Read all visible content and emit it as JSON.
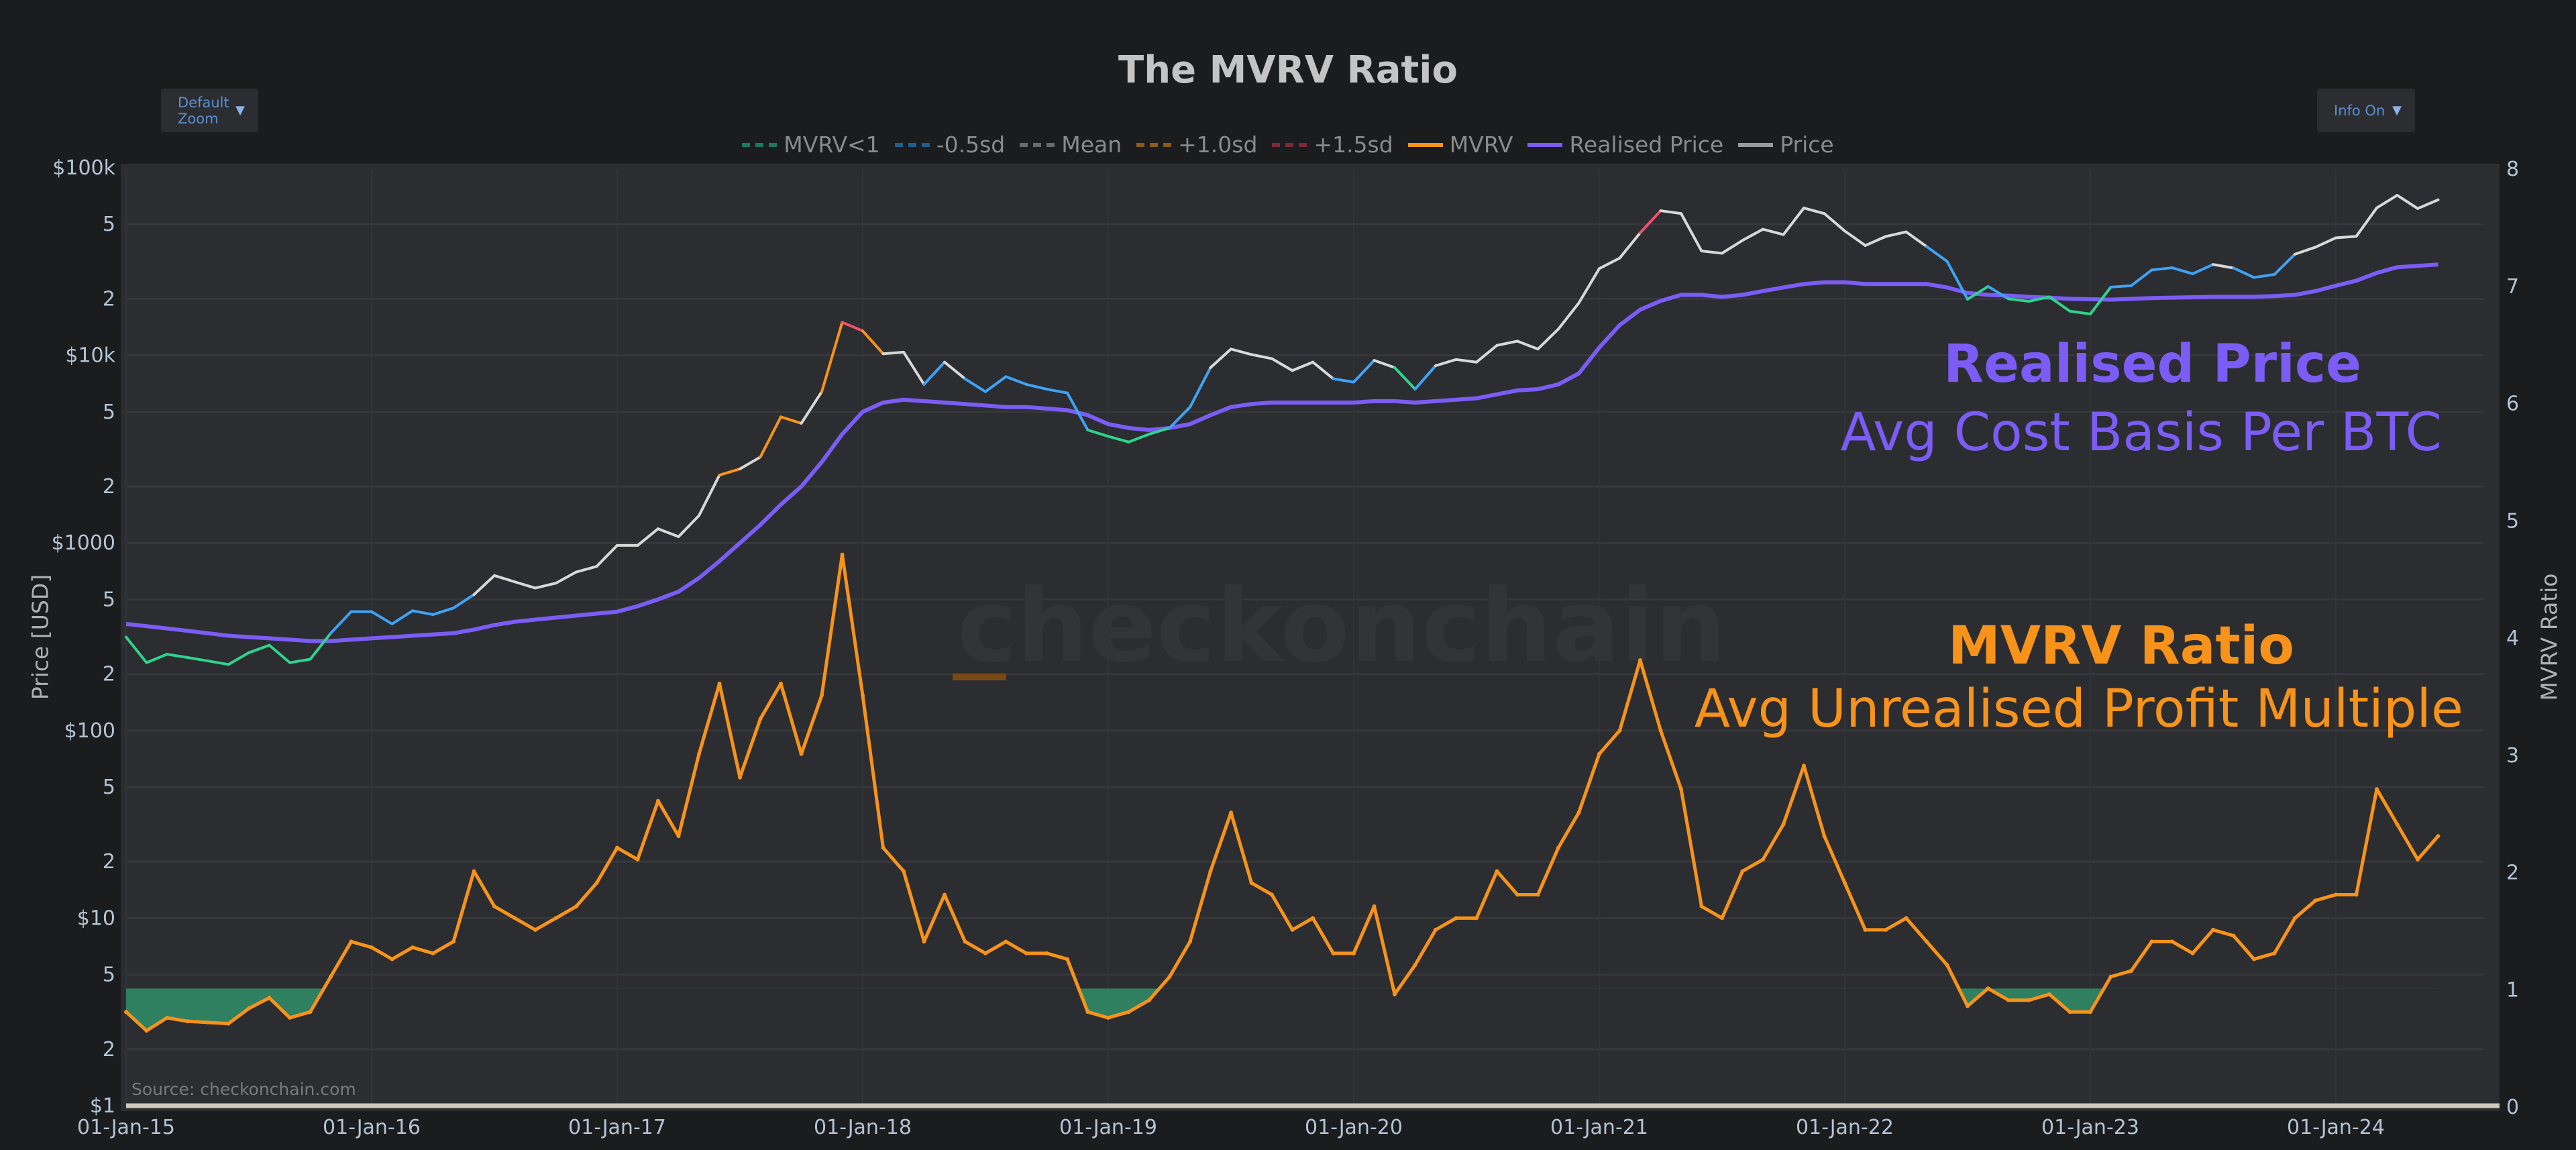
{
  "title": "The MVRV Ratio",
  "controls": {
    "zoom_label": "Default Zoom",
    "info_label": "Info On",
    "dropdown_arrow": "▼"
  },
  "legend": [
    {
      "label": "MVRV<1",
      "style": "dash",
      "color": "#1e7a5a"
    },
    {
      "label": "-0.5sd",
      "style": "dash",
      "color": "#1f5f8f"
    },
    {
      "label": "Mean",
      "style": "dash",
      "color": "#6a6a6a"
    },
    {
      "label": "+1.0sd",
      "style": "dash",
      "color": "#8a5a1e"
    },
    {
      "label": "+1.5sd",
      "style": "dash",
      "color": "#7a2a3a"
    },
    {
      "label": "MVRV",
      "style": "solid",
      "color": "#f7931a"
    },
    {
      "label": "Realised Price",
      "style": "solid",
      "color": "#7b5cf5"
    },
    {
      "label": "Price",
      "style": "solid",
      "color": "#9a9a9a"
    }
  ],
  "annotations": {
    "realised_title": "Realised Price",
    "realised_sub": "Avg Cost Basis Per BTC",
    "mvrv_title": "MVRV Ratio",
    "mvrv_sub": "Avg Unrealised Profit Multiple"
  },
  "watermark": "checkonchain",
  "source": "Source: checkonchain.com",
  "colors": {
    "mvrv": "#f7931a",
    "realised": "#7b5cf5",
    "price": "#d8d8d8",
    "below_one": "#2fd38f",
    "below_one_fill": "#2f8f6a",
    "low_band": "#3fa3f5",
    "high_band": "#f7931a",
    "top_band": "#f0506e"
  },
  "chart_data": {
    "type": "line",
    "title": "The MVRV Ratio",
    "xlabel": "",
    "ylabel_left": "Price [USD]",
    "ylabel_right": "MVRV Ratio",
    "y_left_scale": "log",
    "y_left_range": [
      1,
      100000
    ],
    "y_right_range": [
      0,
      8
    ],
    "x_range": [
      "2015-01",
      "2024-06"
    ],
    "grid": true,
    "legend_position": "top",
    "x_ticks": [
      "01-Jan-15",
      "01-Jan-16",
      "01-Jan-17",
      "01-Jan-18",
      "01-Jan-19",
      "01-Jan-20",
      "01-Jan-21",
      "01-Jan-22",
      "01-Jan-23",
      "01-Jan-24"
    ],
    "y_left_ticks": [
      {
        "v": 100000,
        "l": "$100k"
      },
      {
        "v": 50000,
        "l": "5"
      },
      {
        "v": 20000,
        "l": "2"
      },
      {
        "v": 10000,
        "l": "$10k"
      },
      {
        "v": 5000,
        "l": "5"
      },
      {
        "v": 2000,
        "l": "2"
      },
      {
        "v": 1000,
        "l": "$1000"
      },
      {
        "v": 500,
        "l": "5"
      },
      {
        "v": 200,
        "l": "2"
      },
      {
        "v": 100,
        "l": "$100"
      },
      {
        "v": 50,
        "l": "5"
      },
      {
        "v": 20,
        "l": "2"
      },
      {
        "v": 10,
        "l": "$10"
      },
      {
        "v": 5,
        "l": "5"
      },
      {
        "v": 2,
        "l": "2"
      },
      {
        "v": 1,
        "l": "$1"
      }
    ],
    "y_right_ticks": [
      "0",
      "1",
      "2",
      "3",
      "4",
      "5",
      "6",
      "7",
      "8"
    ],
    "x_start": "2015-01",
    "x_interval": "monthly",
    "series": [
      {
        "name": "Price",
        "axis": "left",
        "values": [
          315,
          230,
          255,
          245,
          235,
          225,
          260,
          285,
          230,
          240,
          330,
          430,
          430,
          370,
          435,
          415,
          450,
          530,
          670,
          620,
          575,
          610,
          700,
          750,
          970,
          970,
          1190,
          1080,
          1400,
          2300,
          2480,
          2870,
          4700,
          4340,
          6400,
          15000,
          13500,
          10200,
          10400,
          7000,
          9200,
          7500,
          6400,
          7700,
          7000,
          6600,
          6300,
          4000,
          3700,
          3450,
          3800,
          4100,
          5300,
          8600,
          10800,
          10100,
          9600,
          8300,
          9200,
          7500,
          7200,
          9400,
          8600,
          6600,
          8800,
          9500,
          9200,
          11300,
          11900,
          10800,
          13800,
          19000,
          29000,
          33000,
          45000,
          59000,
          57000,
          36000,
          35000,
          41000,
          47000,
          44000,
          61000,
          57000,
          46000,
          38500,
          43000,
          45500,
          38000,
          31700,
          19900,
          23300,
          20000,
          19400,
          20500,
          17200,
          16600,
          23100,
          23500,
          28500,
          29300,
          27200,
          30500,
          29200,
          26000,
          27000,
          34600,
          37700,
          42300,
          43100,
          61100,
          71300,
          60600,
          67500
        ]
      },
      {
        "name": "Realised Price",
        "axis": "left",
        "values": [
          370,
          360,
          350,
          340,
          330,
          320,
          315,
          310,
          305,
          300,
          300,
          305,
          310,
          315,
          320,
          325,
          330,
          345,
          365,
          380,
          390,
          400,
          410,
          420,
          430,
          460,
          500,
          550,
          650,
          800,
          1000,
          1250,
          1600,
          2000,
          2700,
          3800,
          5000,
          5600,
          5800,
          5700,
          5600,
          5500,
          5400,
          5300,
          5300,
          5200,
          5100,
          4800,
          4300,
          4100,
          4000,
          4100,
          4300,
          4800,
          5300,
          5500,
          5600,
          5600,
          5600,
          5600,
          5600,
          5700,
          5700,
          5600,
          5700,
          5800,
          5900,
          6200,
          6500,
          6600,
          7000,
          8000,
          11000,
          14500,
          17500,
          19500,
          21000,
          21000,
          20500,
          21000,
          22000,
          23000,
          24000,
          24500,
          24500,
          24000,
          24000,
          24000,
          24000,
          23000,
          21500,
          21000,
          20800,
          20500,
          20300,
          20000,
          19900,
          19800,
          20000,
          20200,
          20300,
          20400,
          20500,
          20500,
          20500,
          20700,
          21000,
          22000,
          23500,
          25000,
          27500,
          29500,
          30000,
          30500
        ]
      },
      {
        "name": "MVRV",
        "axis": "right",
        "values": [
          0.8,
          0.64,
          0.75,
          0.72,
          0.71,
          0.7,
          0.83,
          0.92,
          0.75,
          0.8,
          1.1,
          1.4,
          1.35,
          1.25,
          1.35,
          1.3,
          1.4,
          2.0,
          1.7,
          1.6,
          1.5,
          1.6,
          1.7,
          1.9,
          2.2,
          2.1,
          2.6,
          2.3,
          3.0,
          3.6,
          2.8,
          3.3,
          3.6,
          3.0,
          3.5,
          4.7,
          3.5,
          2.2,
          2.0,
          1.4,
          1.8,
          1.4,
          1.3,
          1.4,
          1.3,
          1.3,
          1.25,
          0.8,
          0.75,
          0.8,
          0.9,
          1.1,
          1.4,
          2.0,
          2.5,
          1.9,
          1.8,
          1.5,
          1.6,
          1.3,
          1.3,
          1.7,
          0.95,
          1.2,
          1.5,
          1.6,
          1.6,
          2.0,
          1.8,
          1.8,
          2.2,
          2.5,
          3.0,
          3.2,
          3.8,
          3.2,
          2.7,
          1.7,
          1.6,
          2.0,
          2.1,
          2.4,
          2.9,
          2.3,
          1.9,
          1.5,
          1.5,
          1.6,
          1.4,
          1.2,
          0.85,
          1.0,
          0.9,
          0.9,
          0.95,
          0.8,
          0.8,
          1.1,
          1.15,
          1.4,
          1.4,
          1.3,
          1.5,
          1.45,
          1.25,
          1.3,
          1.6,
          1.75,
          1.8,
          1.8,
          2.7,
          2.4,
          2.1,
          2.3
        ]
      }
    ]
  }
}
